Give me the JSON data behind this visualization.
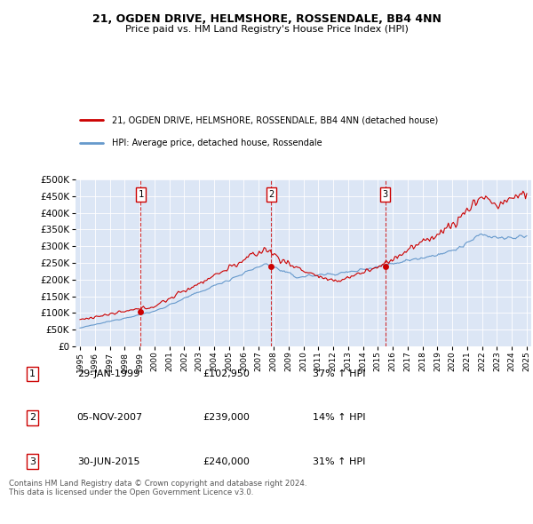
{
  "title": "21, OGDEN DRIVE, HELMSHORE, ROSSENDALE, BB4 4NN",
  "subtitle": "Price paid vs. HM Land Registry's House Price Index (HPI)",
  "background_color": "#dce6f5",
  "plot_bg_color": "#dce6f5",
  "sale_dates_float": [
    1999.08,
    2007.84,
    2015.5
  ],
  "sale_prices": [
    102950,
    239000,
    240000
  ],
  "sale_labels": [
    "1",
    "2",
    "3"
  ],
  "legend_line1": "21, OGDEN DRIVE, HELMSHORE, ROSSENDALE, BB4 4NN (detached house)",
  "legend_line2": "HPI: Average price, detached house, Rossendale",
  "table_rows": [
    [
      "1",
      "29-JAN-1999",
      "£102,950",
      "37% ↑ HPI"
    ],
    [
      "2",
      "05-NOV-2007",
      "£239,000",
      "14% ↑ HPI"
    ],
    [
      "3",
      "30-JUN-2015",
      "£240,000",
      "31% ↑ HPI"
    ]
  ],
  "footer": "Contains HM Land Registry data © Crown copyright and database right 2024.\nThis data is licensed under the Open Government Licence v3.0.",
  "red_color": "#cc0000",
  "blue_color": "#6699cc",
  "ylim": [
    0,
    500000
  ],
  "yticks": [
    0,
    50000,
    100000,
    150000,
    200000,
    250000,
    300000,
    350000,
    400000,
    450000,
    500000
  ],
  "xmin": 1994.7,
  "xmax": 2025.3
}
